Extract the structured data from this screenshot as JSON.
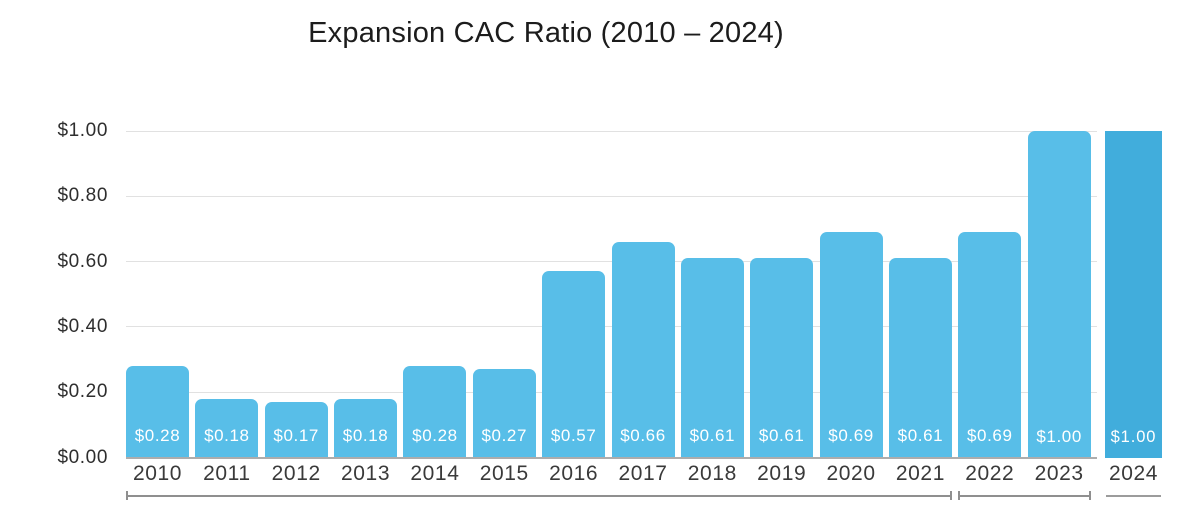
{
  "title": "Expansion CAC Ratio (2010 – 2024)",
  "colors": {
    "bar": "#58BEE8",
    "bar_final": "#41ADDC",
    "grid": "#E1E1E1",
    "axis": "#ADADAD",
    "bracket": "#8F8F8F",
    "bracket_plain": "#9C9C9C",
    "bar_label_text": "#FFFFFF",
    "title_text": "#1C1C1C"
  },
  "chart_data": {
    "type": "bar",
    "title": "Expansion CAC Ratio (2010 – 2024)",
    "categories": [
      "2010",
      "2011",
      "2012",
      "2013",
      "2014",
      "2015",
      "2016",
      "2017",
      "2018",
      "2019",
      "2020",
      "2021",
      "2022",
      "2023",
      "2024"
    ],
    "values": [
      0.28,
      0.18,
      0.17,
      0.18,
      0.28,
      0.27,
      0.57,
      0.66,
      0.61,
      0.61,
      0.69,
      0.61,
      0.69,
      1.0,
      1.0
    ],
    "bar_labels": [
      "$0.28",
      "$0.18",
      "$0.17",
      "$0.18",
      "$0.28",
      "$0.27",
      "$0.57",
      "$0.66",
      "$0.61",
      "$0.61",
      "$0.69",
      "$0.61",
      "$0.69",
      "$1.00",
      "$1.00"
    ],
    "xlabel": "",
    "ylabel": "",
    "ylim": [
      0,
      1.0
    ],
    "ytick_values": [
      0,
      0.2,
      0.4,
      0.6,
      0.8,
      1.0
    ],
    "ytick_labels": [
      "$0.00",
      "$0.20",
      "$0.40",
      "$0.60",
      "$0.80",
      "$1.00"
    ],
    "grid": "horizontal",
    "legend": "none",
    "highlight_last_bar": true,
    "range_markers": [
      {
        "from": "2010",
        "to": "2021",
        "style": "ticked"
      },
      {
        "from": "2022",
        "to": "2023",
        "style": "ticked"
      },
      {
        "from": "2024",
        "to": "2024",
        "style": "plain"
      }
    ]
  }
}
